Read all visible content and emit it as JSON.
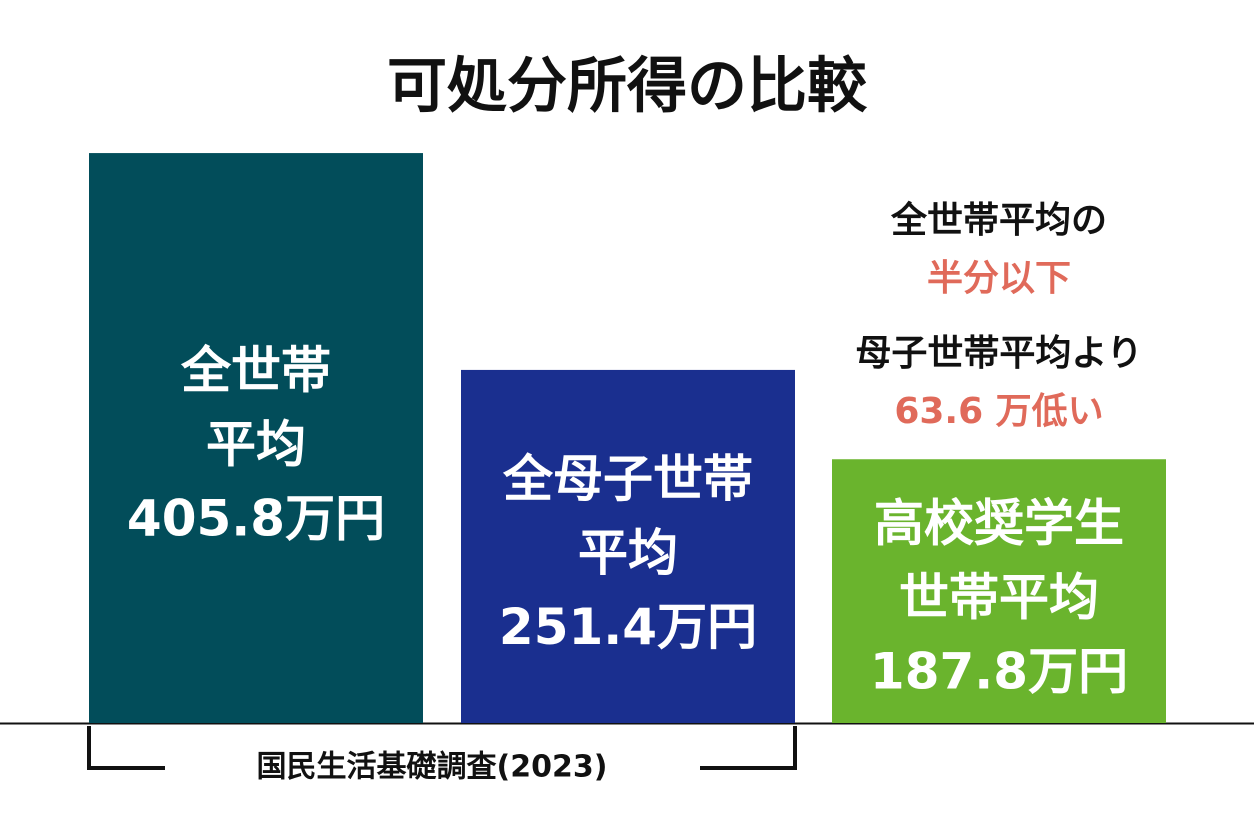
{
  "chart_data": {
    "type": "bar",
    "title": "可処分所得の比較",
    "categories": [
      [
        "全世帯",
        "平均"
      ],
      [
        "全母子世帯",
        "平均"
      ],
      [
        "高校奨学生",
        "世帯平均"
      ]
    ],
    "values": [
      405.8,
      251.4,
      187.8
    ],
    "value_labels": [
      "405.8万円",
      "251.4万円",
      "187.8万円"
    ],
    "colors": [
      "#024d5a",
      "#1a2f8f",
      "#6ab42d"
    ],
    "ylim": [
      0,
      450
    ],
    "annotations": [
      {
        "text": "全世帯平均の",
        "color": "#111111"
      },
      {
        "text": "半分以下",
        "color": "#e06a5a"
      },
      {
        "text": "母子世帯平均より",
        "color": "#111111"
      },
      {
        "text": "63.6 万低い",
        "color": "#e06a5a"
      }
    ],
    "source": "国民生活基礎調査(2023)"
  }
}
